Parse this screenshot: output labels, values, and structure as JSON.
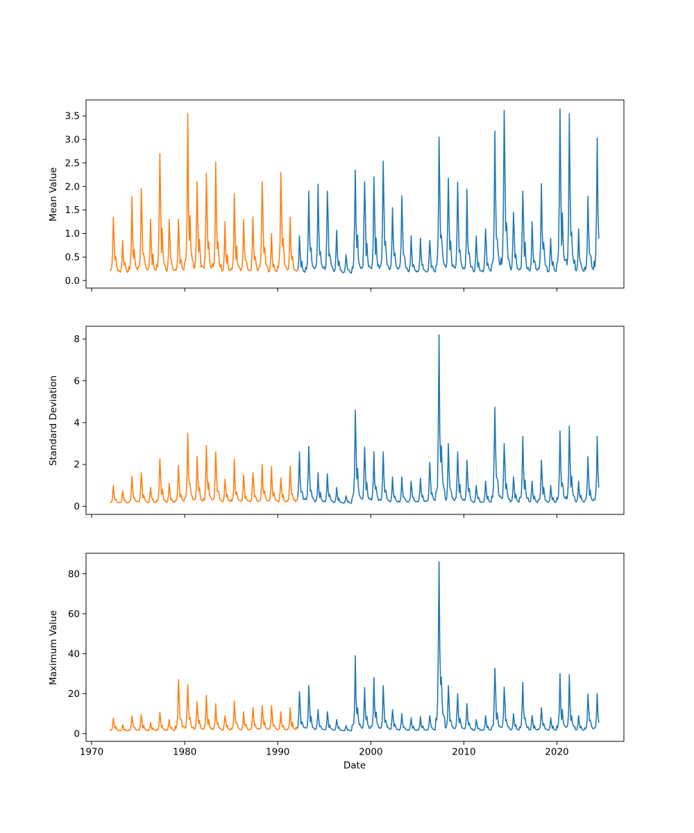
{
  "figure": {
    "background": "#ffffff",
    "xlabel": "Date",
    "xlim": [
      1969.4,
      2027.2
    ],
    "x_ticks": {
      "values": [
        1970,
        1980,
        1990,
        2000,
        2010,
        2020
      ],
      "labels": [
        "1970",
        "1980",
        "1990",
        "2000",
        "2010",
        "2020"
      ]
    },
    "x_resolution": "monthly",
    "data_start": 1972.0,
    "data_end": 2024.5,
    "color_split_year": 1992.25,
    "colors": {
      "pre_split_line": "#ff7f0e",
      "post_split_line": "#1f77b4",
      "axes": "#000000"
    },
    "years": [
      1972,
      1973,
      1974,
      1975,
      1976,
      1977,
      1978,
      1979,
      1980,
      1981,
      1982,
      1983,
      1984,
      1985,
      1986,
      1987,
      1988,
      1989,
      1990,
      1991,
      1992,
      1993,
      1994,
      1995,
      1996,
      1997,
      1998,
      1999,
      2000,
      2001,
      2002,
      2003,
      2004,
      2005,
      2006,
      2007,
      2008,
      2009,
      2010,
      2011,
      2012,
      2013,
      2014,
      2015,
      2016,
      2017,
      2018,
      2019,
      2020,
      2021,
      2022,
      2023,
      2024
    ]
  },
  "chart_data": [
    {
      "type": "line",
      "ylabel": "Mean Value",
      "ylim": [
        -0.16,
        3.84
      ],
      "y_ticks": {
        "values": [
          0.0,
          0.5,
          1.0,
          1.5,
          2.0,
          2.5,
          3.0,
          3.5
        ],
        "labels": [
          "0.0",
          "0.5",
          "1.0",
          "1.5",
          "2.0",
          "2.5",
          "3.0",
          "3.5"
        ]
      },
      "baseline": 0.13,
      "min_clamp": 0.03,
      "annual_peak_values": [
        1.35,
        0.85,
        1.78,
        1.95,
        1.3,
        2.7,
        1.3,
        1.3,
        3.55,
        2.1,
        2.28,
        2.52,
        1.25,
        1.85,
        1.3,
        1.35,
        2.1,
        1.0,
        2.3,
        1.35,
        0.95,
        1.9,
        2.05,
        1.9,
        1.07,
        0.55,
        2.35,
        2.1,
        2.2,
        2.54,
        1.55,
        1.8,
        0.95,
        0.9,
        0.85,
        3.05,
        2.18,
        2.09,
        1.94,
        0.95,
        1.1,
        3.18,
        3.62,
        1.45,
        1.9,
        1.25,
        2.06,
        0.9,
        3.65,
        3.55,
        1.1,
        1.79,
        3.03
      ],
      "series": [
        {
          "name": "segment-1972-1992",
          "color": "#ff7f0e"
        },
        {
          "name": "segment-1992-2024",
          "color": "#1f77b4"
        }
      ]
    },
    {
      "type": "line",
      "ylabel": "Standard Deviation",
      "ylim": [
        -0.39,
        8.61
      ],
      "y_ticks": {
        "values": [
          0,
          2,
          4,
          6,
          8
        ],
        "labels": [
          "0",
          "2",
          "4",
          "6",
          "8"
        ]
      },
      "baseline": 0.12,
      "min_clamp": 0.03,
      "annual_peak_values": [
        1.0,
        0.75,
        1.42,
        1.6,
        0.9,
        2.26,
        1.1,
        1.95,
        3.5,
        2.4,
        2.9,
        2.6,
        1.3,
        2.26,
        1.5,
        1.6,
        2.0,
        1.9,
        1.35,
        1.9,
        2.6,
        2.87,
        1.6,
        1.55,
        0.9,
        0.5,
        4.6,
        2.83,
        2.6,
        2.6,
        1.4,
        1.4,
        1.2,
        1.35,
        2.1,
        8.2,
        3.0,
        2.6,
        2.2,
        1.0,
        1.2,
        4.73,
        3.0,
        1.4,
        3.34,
        1.2,
        2.2,
        1.0,
        3.6,
        3.84,
        1.2,
        2.37,
        3.34
      ],
      "series": [
        {
          "name": "segment-1972-1992",
          "color": "#ff7f0e"
        },
        {
          "name": "segment-1992-2024",
          "color": "#1f77b4"
        }
      ]
    },
    {
      "type": "line",
      "ylabel": "Maximum Value",
      "ylim": [
        -3.9,
        90.3
      ],
      "y_ticks": {
        "values": [
          0,
          20,
          40,
          60,
          80
        ],
        "labels": [
          "0",
          "20",
          "40",
          "60",
          "80"
        ]
      },
      "baseline": 1.2,
      "min_clamp": 0.4,
      "annual_peak_values": [
        7.7,
        4.5,
        8.8,
        9.5,
        5.5,
        10.6,
        7.0,
        27.0,
        24.5,
        16.0,
        19.2,
        15.0,
        9.0,
        16.3,
        11.0,
        13.0,
        14.0,
        14.0,
        11.0,
        13.0,
        21.0,
        24.0,
        12.0,
        11.0,
        7.0,
        4.0,
        39.0,
        23.0,
        28.0,
        24.0,
        12.0,
        10.0,
        8.0,
        8.5,
        9.0,
        86.0,
        24.0,
        20.0,
        15.0,
        7.0,
        9.0,
        32.7,
        23.3,
        10.0,
        25.7,
        9.0,
        13.0,
        8.0,
        30.0,
        29.5,
        9.0,
        19.8,
        20.0
      ],
      "series": [
        {
          "name": "segment-1972-1992",
          "color": "#ff7f0e"
        },
        {
          "name": "segment-1992-2024",
          "color": "#1f77b4"
        }
      ]
    }
  ]
}
